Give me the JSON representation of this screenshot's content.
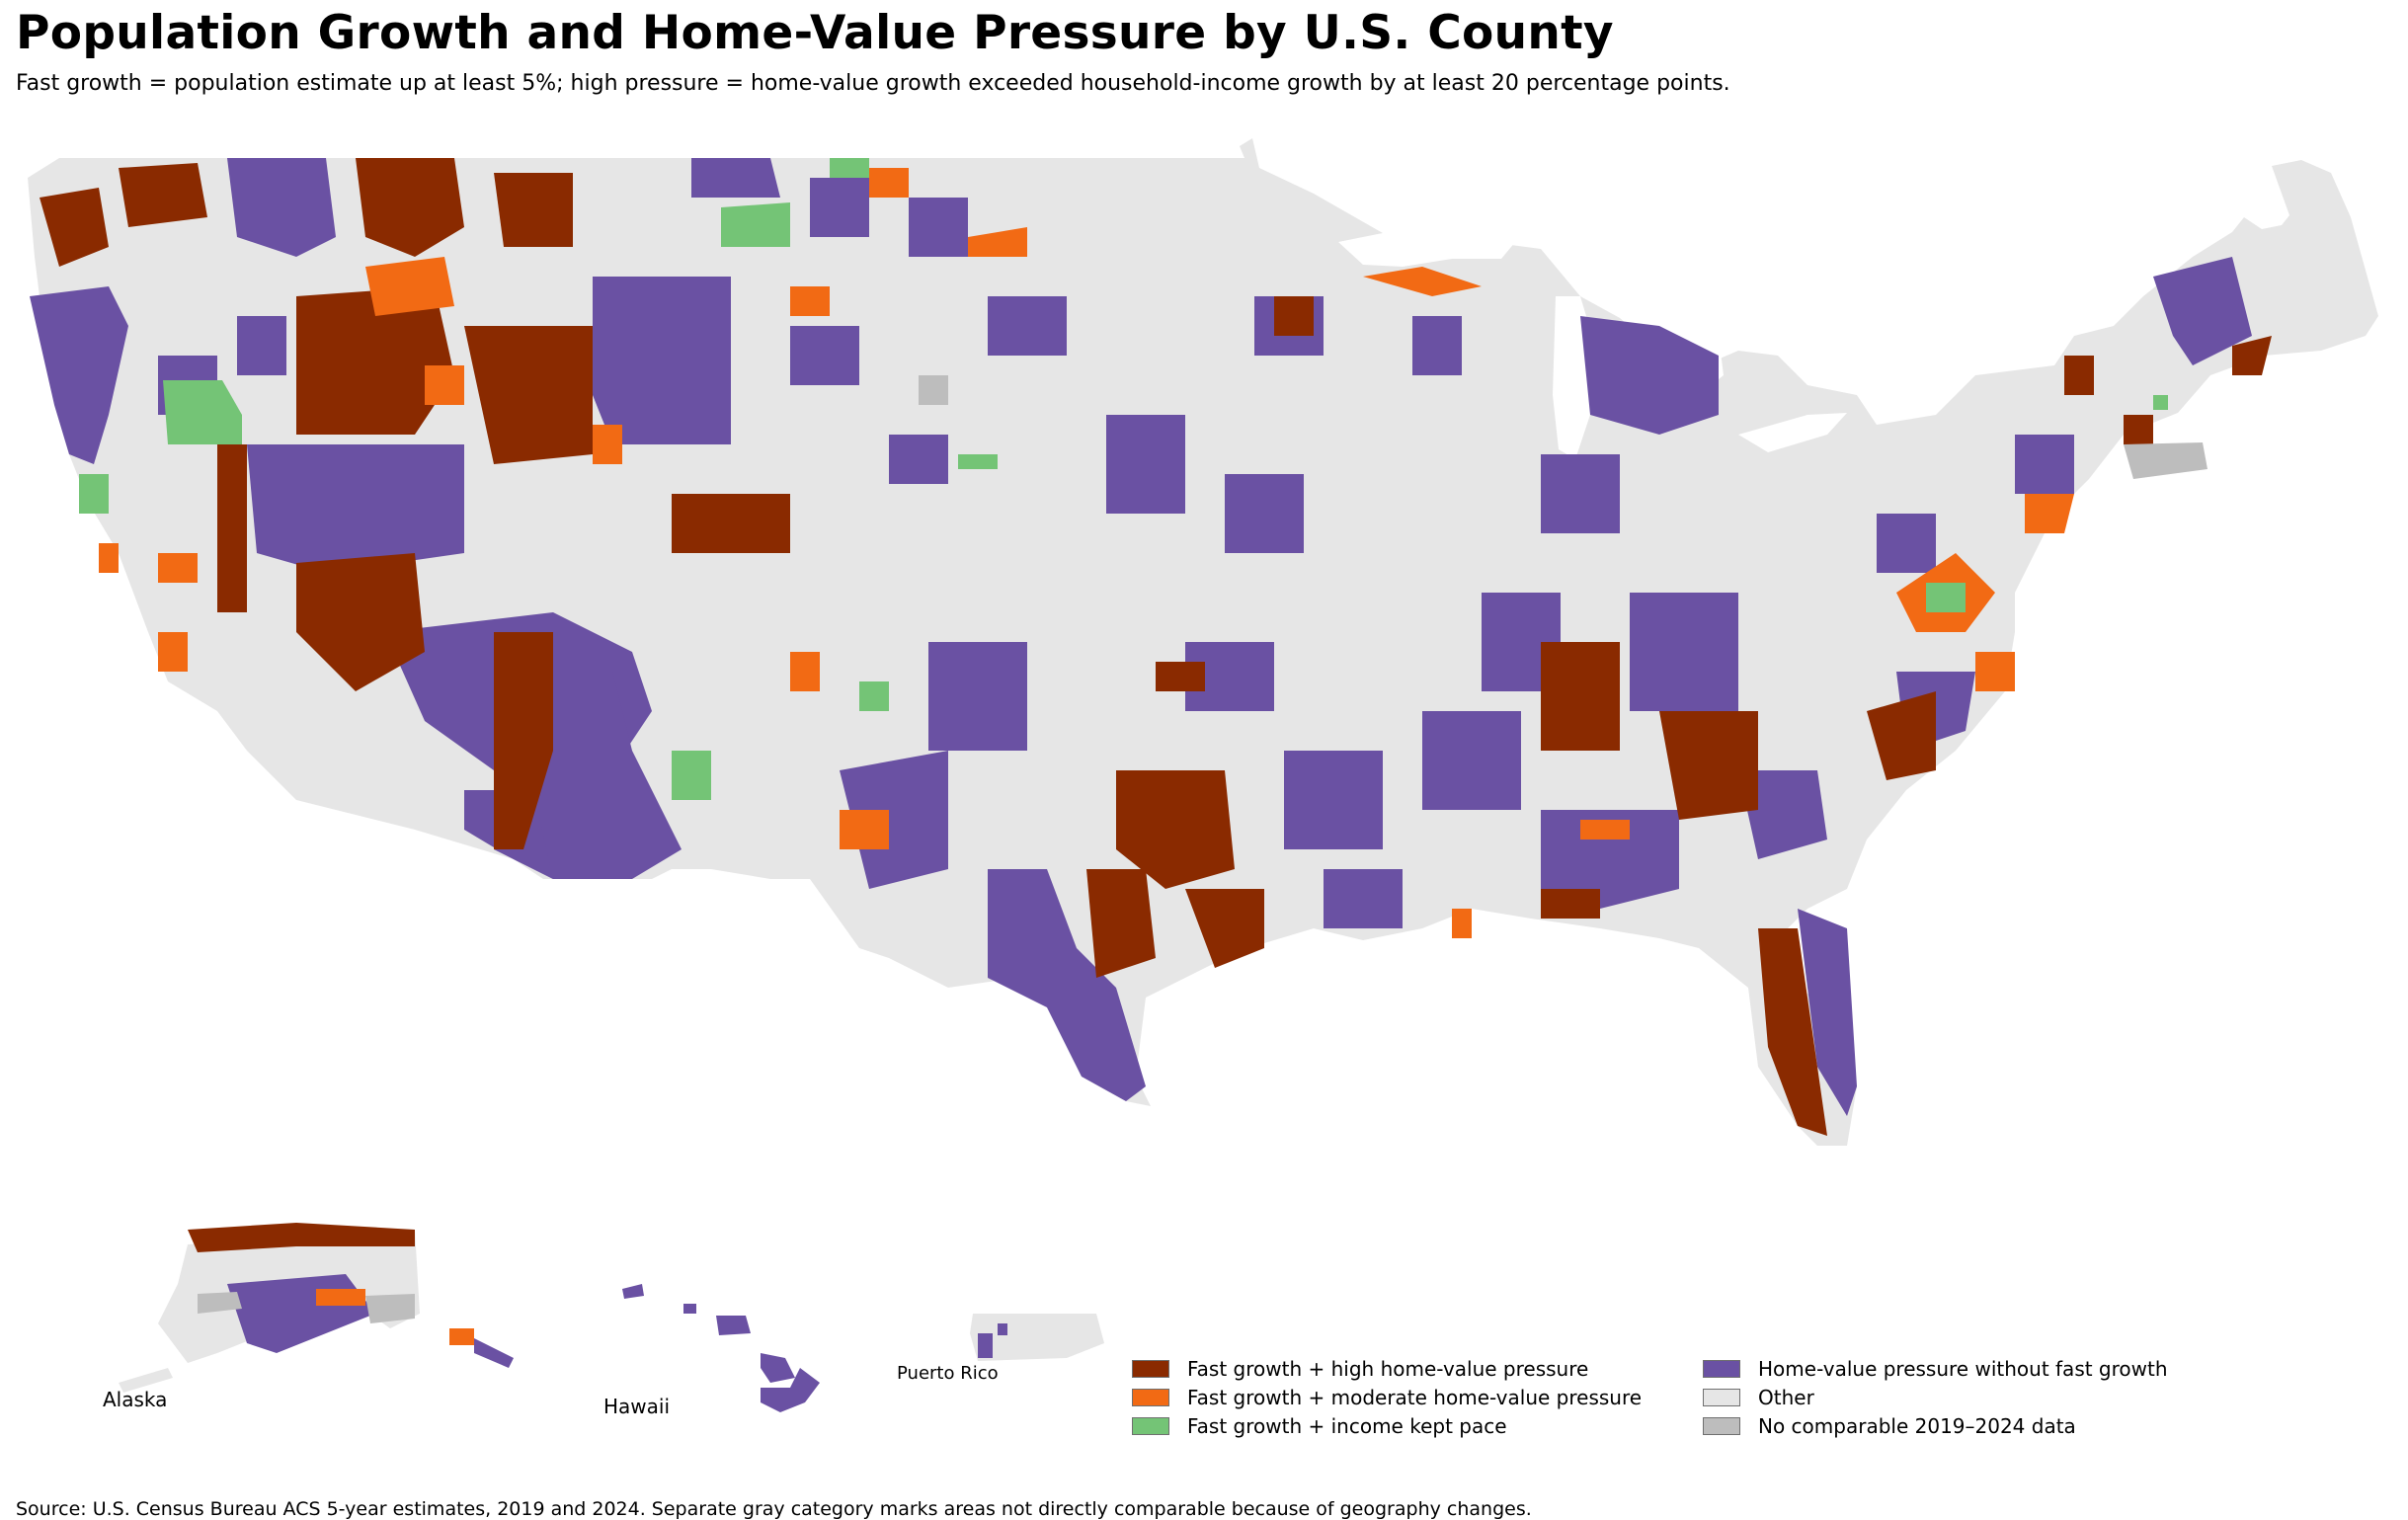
{
  "title": "Population Growth and Home-Value Pressure by U.S. County",
  "subtitle": "Fast growth = population estimate up at least 5%; high pressure = home-value growth exceeded household-income growth by at least 20 percentage points.",
  "source": "Source: U.S. Census Bureau ACS 5-year estimates, 2019 and 2024. Separate gray category marks areas not directly comparable because of geography changes.",
  "insets": {
    "alaska": "Alaska",
    "hawaii": "Hawaii",
    "puerto_rico": "Puerto Rico"
  },
  "colors": {
    "fast_high": "#8a2a00",
    "fast_moderate": "#f26a14",
    "fast_kept_pace": "#74c476",
    "pressure_only": "#6a51a3",
    "other": "#e6e6e6",
    "no_data": "#bdbdbd"
  },
  "legend": [
    {
      "label": "Fast growth + high home-value pressure",
      "color_key": "fast_high"
    },
    {
      "label": "Fast growth + moderate home-value pressure",
      "color_key": "fast_moderate"
    },
    {
      "label": "Fast growth + income kept pace",
      "color_key": "fast_kept_pace"
    },
    {
      "label": "Home-value pressure without fast growth",
      "color_key": "pressure_only"
    },
    {
      "label": "Other",
      "color_key": "other"
    },
    {
      "label": "No comparable 2019–2024 data",
      "color_key": "no_data"
    }
  ]
}
